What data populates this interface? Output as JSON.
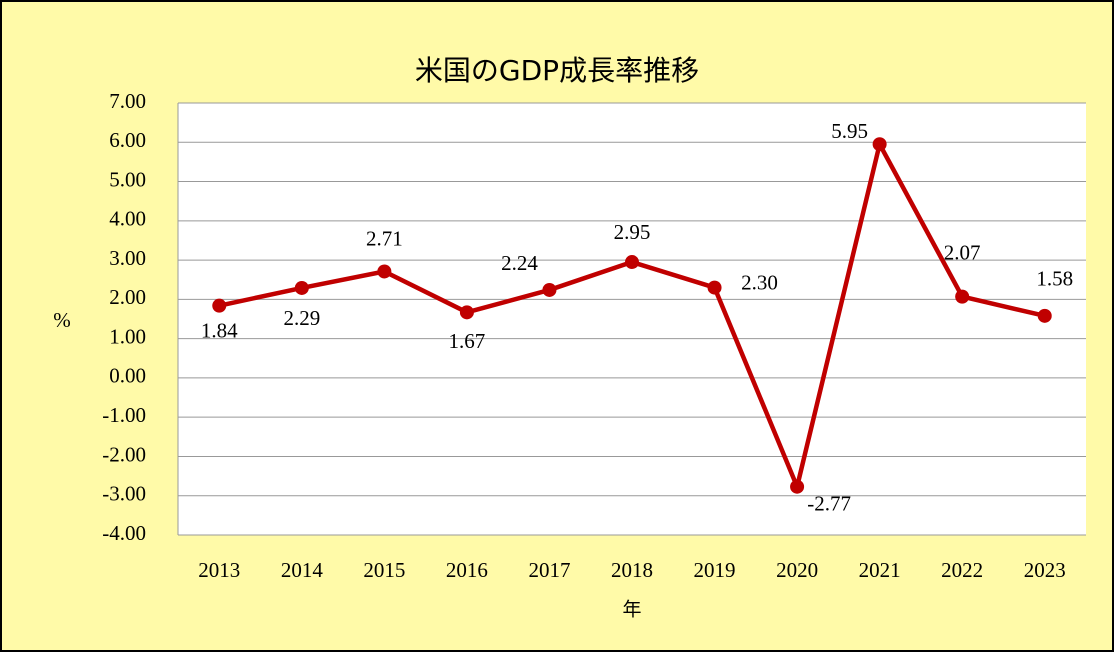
{
  "chart_data": {
    "type": "line",
    "title": "米国のGDP成長率推移",
    "x_label": "年",
    "y_label": "%",
    "categories": [
      "2013",
      "2014",
      "2015",
      "2016",
      "2017",
      "2018",
      "2019",
      "2020",
      "2021",
      "2022",
      "2023"
    ],
    "series": [
      {
        "name": "GDP成長率",
        "color": "#c00000",
        "values": [
          1.84,
          2.29,
          2.71,
          1.67,
          2.24,
          2.95,
          2.3,
          -2.77,
          5.95,
          2.07,
          1.58
        ],
        "value_labels": [
          "1.84",
          "2.29",
          "2.71",
          "1.67",
          "2.24",
          "2.95",
          "2.30",
          "-2.77",
          "5.95",
          "2.07",
          "1.58"
        ]
      }
    ],
    "ylim": [
      -4,
      7
    ],
    "yticks": [
      {
        "value": -4,
        "label": "-4.00"
      },
      {
        "value": -3,
        "label": "-3.00"
      },
      {
        "value": -2,
        "label": "-2.00"
      },
      {
        "value": -1,
        "label": "-1.00"
      },
      {
        "value": 0,
        "label": "0.00"
      },
      {
        "value": 1,
        "label": "1.00"
      },
      {
        "value": 2,
        "label": "2.00"
      },
      {
        "value": 3,
        "label": "3.00"
      },
      {
        "value": 4,
        "label": "4.00"
      },
      {
        "value": 5,
        "label": "5.00"
      },
      {
        "value": 6,
        "label": "6.00"
      },
      {
        "value": 7,
        "label": "7.00"
      }
    ],
    "grid": true
  }
}
